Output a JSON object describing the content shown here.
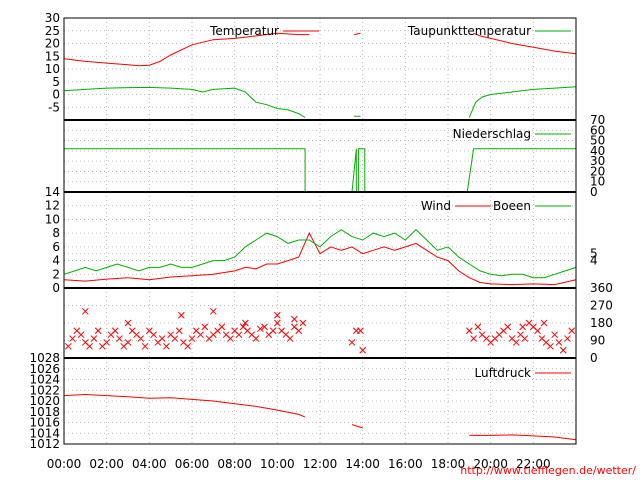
{
  "url": "http://www.tiefflegen.de/wetter/",
  "colors": {
    "red": "#ff0000",
    "green": "#00b000",
    "black": "#000000"
  },
  "x_ticks": [
    "00:00",
    "02:00",
    "04:00",
    "06:00",
    "08:00",
    "10:00",
    "12:00",
    "14:00",
    "16:00",
    "18:00",
    "20:00",
    "22:00"
  ],
  "chart_data": [
    {
      "type": "line",
      "xlim": [
        0,
        24
      ],
      "ylim": [
        -10,
        30
      ],
      "y_ticks": [
        "30",
        "25",
        "20",
        "15",
        "10",
        "5",
        "0",
        "-5"
      ],
      "grid": true,
      "legend_position": "top-right",
      "series": [
        {
          "name": "Temperatur",
          "color": "#ff0000",
          "x": [
            0,
            1,
            2,
            3,
            3.5,
            4,
            4.5,
            5,
            6,
            7,
            8,
            9,
            10,
            11,
            11.5
          ],
          "y": [
            14,
            13,
            12.3,
            11.7,
            11.3,
            11.5,
            13,
            15.5,
            19.5,
            21.5,
            22,
            23,
            24,
            23.5,
            23.5
          ]
        },
        {
          "name": "Temperatur",
          "color": "#ff0000",
          "x": [
            13.6,
            13.9
          ],
          "y": [
            23.5,
            24
          ]
        },
        {
          "name": "Temperatur",
          "color": "#ff0000",
          "x": [
            19.2,
            19.5,
            20,
            21,
            22,
            23,
            24
          ],
          "y": [
            24,
            23,
            22,
            20,
            18.5,
            17,
            16
          ]
        },
        {
          "name": "Taupunkttemperatur",
          "color": "#00b000",
          "x": [
            0,
            1,
            2,
            3,
            4,
            5,
            6,
            6.5,
            7,
            8,
            8.5,
            9,
            9.5,
            10,
            10.5,
            11,
            11.3
          ],
          "y": [
            1.5,
            2,
            2.5,
            2.7,
            2.8,
            2.5,
            2,
            1,
            2,
            2.5,
            1,
            -3,
            -4,
            -5.5,
            -6,
            -7.5,
            -9
          ]
        },
        {
          "name": "Taupunkttemperatur",
          "color": "#00b000",
          "x": [
            13.6,
            13.9
          ],
          "y": [
            -8.5,
            -8.5
          ]
        },
        {
          "name": "Taupunkttemperatur",
          "color": "#00b000",
          "x": [
            19,
            19.3,
            19.6,
            20,
            21,
            22,
            23,
            24
          ],
          "y": [
            -9,
            -3,
            -1,
            0,
            1,
            2,
            2.5,
            3
          ]
        }
      ]
    },
    {
      "type": "line",
      "xlim": [
        0,
        24
      ],
      "ylim": [
        0,
        70
      ],
      "y_ticks": [
        "70",
        "60",
        "50",
        "40",
        "30",
        "20",
        "10",
        "0"
      ],
      "grid": true,
      "legend_position": "top-right",
      "series": [
        {
          "name": "Niederschlag",
          "color": "#00b000",
          "x": [
            0,
            11.3,
            11.3,
            11.6,
            11.6,
            13.5,
            13.5,
            13.7,
            13.7,
            13.8,
            13.8,
            14.1,
            14.1,
            18.9,
            18.9,
            19.2,
            19.2,
            24
          ],
          "y": [
            42,
            42,
            0,
            0,
            0,
            0,
            0,
            42,
            0,
            0,
            42,
            42,
            0,
            0,
            0,
            42,
            42,
            42
          ]
        }
      ]
    },
    {
      "type": "line",
      "xlim": [
        0,
        24
      ],
      "ylim": [
        0,
        14
      ],
      "y_ticks": [
        "14",
        "12",
        "10",
        "8",
        "6",
        "4",
        "2",
        "0"
      ],
      "right_ticks": [
        "5",
        "4"
      ],
      "grid": true,
      "legend_position": "top-right",
      "series": [
        {
          "name": "Wind",
          "color": "#ff0000",
          "x": [
            0,
            1,
            2,
            3,
            4,
            5,
            6,
            7,
            8,
            8.5,
            9,
            9.5,
            10,
            10.5,
            11,
            11.5,
            12,
            12.5,
            13,
            13.5,
            14,
            14.5,
            15,
            15.5,
            16,
            16.5,
            17,
            17.5,
            18,
            18.5,
            19,
            19.5,
            20,
            21,
            22,
            23,
            24
          ],
          "y": [
            1.2,
            1,
            1.3,
            1.5,
            1.2,
            1.6,
            1.8,
            2,
            2.5,
            3,
            2.8,
            3.5,
            3.5,
            4,
            4.5,
            8,
            5,
            6,
            5.5,
            6,
            5,
            5.5,
            6,
            5.5,
            6,
            6.5,
            5.5,
            4.5,
            4,
            2.5,
            1.5,
            0.8,
            0.6,
            0.5,
            0.6,
            0.5,
            1.2
          ]
        },
        {
          "name": "Boeen",
          "color": "#00b000",
          "x": [
            0,
            0.5,
            1,
            1.5,
            2,
            2.5,
            3,
            3.5,
            4,
            4.5,
            5,
            5.5,
            6,
            6.5,
            7,
            7.5,
            8,
            8.5,
            9,
            9.5,
            10,
            10.5,
            11,
            11.5,
            12,
            12.5,
            13,
            13.5,
            14,
            14.5,
            15,
            15.5,
            16,
            16.5,
            17,
            17.5,
            18,
            18.5,
            19,
            19.5,
            20,
            20.5,
            21,
            21.5,
            22,
            22.5,
            23,
            23.5,
            24
          ],
          "y": [
            2,
            2.5,
            3,
            2.5,
            3,
            3.5,
            3,
            2.5,
            3,
            3,
            3.5,
            3,
            3,
            3.5,
            4,
            4,
            4.5,
            6,
            7,
            8,
            7.5,
            6.5,
            7,
            7,
            6,
            7.5,
            8.5,
            7.5,
            7,
            8,
            7.5,
            8,
            7,
            8.5,
            7,
            5.5,
            6,
            4.5,
            3.5,
            2.5,
            2,
            1.8,
            2,
            2,
            1.5,
            1.5,
            2,
            2.5,
            3
          ]
        }
      ]
    },
    {
      "type": "scatter",
      "xlim": [
        0,
        24
      ],
      "ylim": [
        0,
        360
      ],
      "right_ticks": [
        "360",
        "270",
        "180",
        "90",
        "0"
      ],
      "grid": true,
      "series": [
        {
          "name": "",
          "color": "#ff0000",
          "x": [
            0.2,
            0.4,
            0.6,
            0.8,
            1.0,
            1.2,
            1.4,
            1.6,
            1.8,
            2.0,
            2.2,
            2.4,
            2.6,
            2.8,
            3.0,
            3.2,
            3.4,
            3.6,
            3.8,
            4.0,
            4.2,
            4.4,
            4.6,
            4.8,
            5.0,
            5.2,
            5.4,
            5.6,
            5.8,
            6.0,
            6.2,
            6.4,
            6.6,
            6.8,
            7.0,
            7.2,
            7.4,
            7.6,
            7.8,
            8.0,
            8.2,
            8.4,
            8.6,
            8.8,
            9.0,
            9.2,
            9.4,
            9.6,
            9.8,
            10.0,
            10.2,
            10.4,
            10.6,
            10.8,
            11.0,
            11.2,
            13.5,
            13.7,
            13.9,
            14.0,
            19.0,
            19.2,
            19.4,
            19.6,
            19.8,
            20.0,
            20.2,
            20.4,
            20.6,
            20.8,
            21.0,
            21.2,
            21.4,
            21.6,
            21.8,
            22.0,
            22.2,
            22.4,
            22.6,
            22.8,
            23.0,
            23.2,
            23.4,
            23.6,
            23.8,
            1.0,
            3.0,
            5.5,
            7.0,
            8.5,
            10.0,
            10.8,
            21.5,
            22.5
          ],
          "y": [
            60,
            100,
            140,
            120,
            80,
            60,
            100,
            140,
            60,
            80,
            120,
            140,
            100,
            60,
            80,
            140,
            120,
            100,
            60,
            140,
            120,
            80,
            100,
            60,
            120,
            100,
            140,
            80,
            60,
            100,
            140,
            120,
            160,
            100,
            120,
            140,
            160,
            120,
            100,
            140,
            120,
            160,
            140,
            120,
            100,
            150,
            160,
            120,
            140,
            180,
            140,
            120,
            100,
            160,
            140,
            180,
            80,
            140,
            140,
            40,
            140,
            100,
            160,
            120,
            100,
            80,
            100,
            120,
            140,
            160,
            100,
            80,
            120,
            100,
            180,
            160,
            140,
            100,
            80,
            60,
            120,
            80,
            40,
            100,
            140,
            240,
            180,
            220,
            240,
            180,
            220,
            200,
            160,
            180
          ]
        }
      ]
    },
    {
      "type": "line",
      "xlim": [
        0,
        24
      ],
      "ylim": [
        1012,
        1028
      ],
      "y_ticks": [
        "1028",
        "1026",
        "1024",
        "1022",
        "1020",
        "1018",
        "1016",
        "1014",
        "1012"
      ],
      "grid": true,
      "legend_position": "top-right",
      "series": [
        {
          "name": "Luftdruck",
          "color": "#ff0000",
          "x": [
            0,
            1,
            2,
            3,
            4,
            5,
            6,
            7,
            8,
            9,
            10,
            11,
            11.3
          ],
          "y": [
            1021,
            1021.2,
            1021,
            1020.8,
            1020.5,
            1020.6,
            1020.3,
            1020,
            1019.5,
            1019,
            1018.3,
            1017.5,
            1017
          ]
        },
        {
          "name": "Luftdruck",
          "color": "#ff0000",
          "x": [
            13.5,
            14.0
          ],
          "y": [
            1015.6,
            1015.0
          ]
        },
        {
          "name": "Luftdruck",
          "color": "#ff0000",
          "x": [
            19.0,
            20,
            21,
            22,
            23,
            24
          ],
          "y": [
            1013.6,
            1013.6,
            1013.7,
            1013.5,
            1013.3,
            1012.8
          ]
        }
      ]
    }
  ]
}
